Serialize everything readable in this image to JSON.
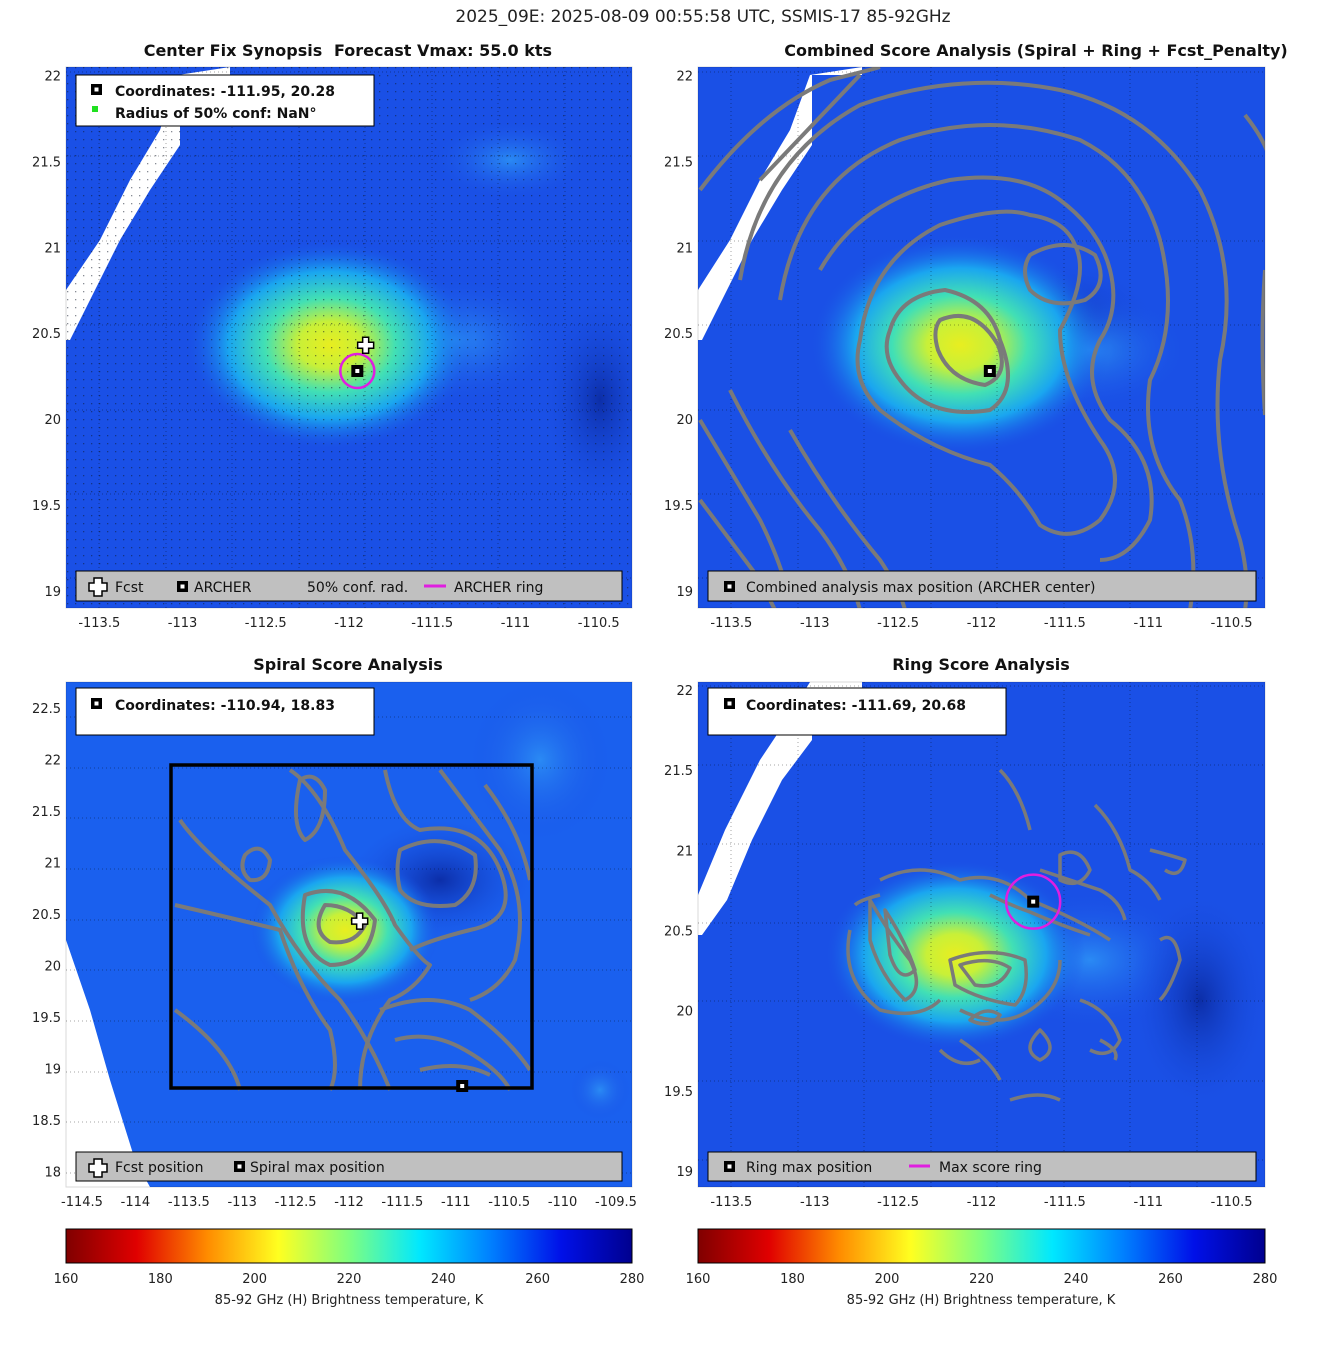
{
  "figure": {
    "title": "2025_09E: 2025-08-09 00:55:58 UTC, SSMIS-17 85-92GHz"
  },
  "chart_data": [
    {
      "type": "heatmap",
      "title": "Center Fix Synopsis",
      "title2": "Forecast Vmax: 55.0 kts",
      "xlim": [
        -113.7,
        -110.3
      ],
      "ylim": [
        18.9,
        22.05
      ],
      "xticks": [
        -113.5,
        -113,
        -112.5,
        -112,
        -111.5,
        -111,
        -110.5
      ],
      "yticks": [
        19,
        19.5,
        20,
        20.5,
        21,
        21.5,
        22
      ],
      "xtick_labels": [
        "-113.5",
        "-113",
        "-112.5",
        "-112",
        "-111.5",
        "-111",
        "-110.5"
      ],
      "ytick_labels": [
        "19",
        "19.5",
        "20",
        "20.5",
        "21",
        "21.5",
        "22"
      ],
      "info": [
        "Coordinates: -111.95, 20.28",
        "Radius of 50% conf: NaN°"
      ],
      "legend": [
        "Fcst",
        "ARCHER",
        "50% conf. rad.",
        "ARCHER ring"
      ],
      "markers": {
        "archer": [
          -111.95,
          20.28
        ],
        "fcst": [
          -111.9,
          20.43
        ]
      }
    },
    {
      "type": "heatmap",
      "title": "Combined Score Analysis (Spiral + Ring + Fcst_Penalty)",
      "xlim": [
        -113.7,
        -110.3
      ],
      "ylim": [
        18.9,
        22.05
      ],
      "xticks": [
        -113.5,
        -113,
        -112.5,
        -112,
        -111.5,
        -111,
        -110.5
      ],
      "yticks": [
        19,
        19.5,
        20,
        20.5,
        21,
        21.5,
        22
      ],
      "xtick_labels": [
        "-113.5",
        "-113",
        "-112.5",
        "-112",
        "-111.5",
        "-111",
        "-110.5"
      ],
      "ytick_labels": [
        "19",
        "19.5",
        "20",
        "20.5",
        "21",
        "21.5",
        "22"
      ],
      "legend": [
        "Combined analysis max position (ARCHER center)"
      ],
      "markers": {
        "max": [
          -111.95,
          20.28
        ]
      }
    },
    {
      "type": "heatmap",
      "title": "Spiral Score Analysis",
      "xlim": [
        -114.65,
        -109.35
      ],
      "ylim": [
        17.85,
        22.75
      ],
      "xticks": [
        -114.5,
        -114,
        -113.5,
        -113,
        -112.5,
        -112,
        -111.5,
        -111,
        -110.5,
        -110,
        -109.5
      ],
      "yticks": [
        18,
        18.5,
        19,
        19.5,
        20,
        20.5,
        21,
        21.5,
        22,
        22.5
      ],
      "xtick_labels": [
        "-114.5",
        "-114",
        "-113.5",
        "-113",
        "-112.5",
        "-112",
        "-111.5",
        "-111",
        "-110.5",
        "-110",
        "-109.5"
      ],
      "ytick_labels": [
        "18",
        "18.5",
        "19",
        "19.5",
        "20",
        "20.5",
        "21",
        "21.5",
        "22",
        "22.5"
      ],
      "info": [
        "Coordinates: -110.94, 18.83"
      ],
      "legend": [
        "Fcst position",
        "Spiral max position"
      ],
      "markers": {
        "spiral_max": [
          -110.94,
          18.83
        ],
        "fcst": [
          -111.9,
          20.43
        ]
      }
    },
    {
      "type": "heatmap",
      "title": "Ring Score Analysis",
      "xlim": [
        -113.7,
        -110.3
      ],
      "ylim": [
        18.9,
        22.05
      ],
      "xticks": [
        -113.5,
        -113,
        -112.5,
        -112,
        -111.5,
        -111,
        -110.5
      ],
      "yticks": [
        19,
        19.5,
        20,
        20.5,
        21,
        21.5,
        22
      ],
      "xtick_labels": [
        "-113.5",
        "-113",
        "-112.5",
        "-112",
        "-111.5",
        "-111",
        "-110.5"
      ],
      "ytick_labels": [
        "19",
        "19.5",
        "20",
        "20.5",
        "21",
        "21.5",
        "22"
      ],
      "info": [
        "Coordinates: -111.69, 20.68"
      ],
      "legend": [
        "Ring max position",
        "Max score ring"
      ],
      "markers": {
        "ring_max": [
          -111.69,
          20.68
        ]
      }
    }
  ],
  "colorbar": {
    "min": 160,
    "max": 280,
    "ticks": [
      "160",
      "180",
      "200",
      "220",
      "240",
      "260",
      "280"
    ],
    "label": "85-92 GHz (H) Brightness temperature, K"
  },
  "colors": {
    "archer_ring": "#e01ee0",
    "contour": "#7a7a7a",
    "legend_bg": "#c0c0c0"
  }
}
